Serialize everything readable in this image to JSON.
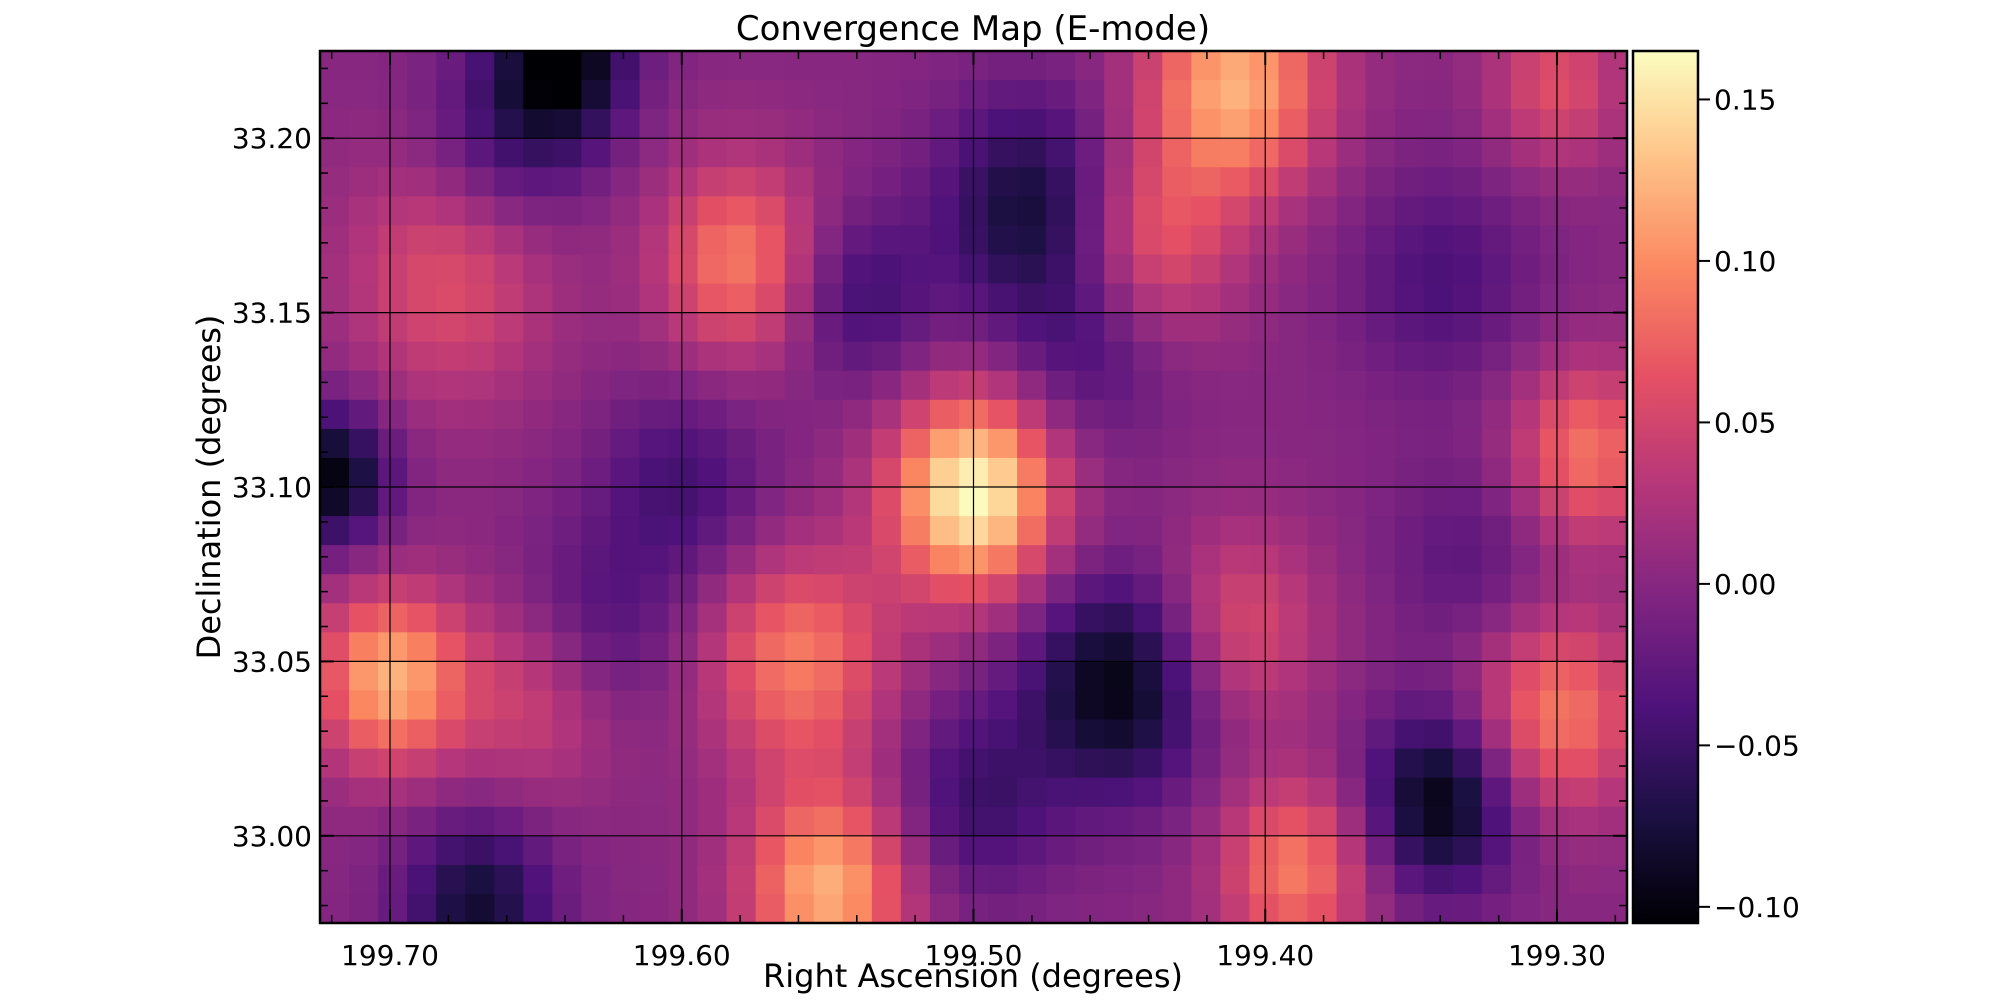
{
  "chart_data": {
    "type": "heatmap",
    "title": "Convergence Map (E-mode)",
    "xlabel": "Right Ascension (degrees)",
    "ylabel": "Declination (degrees)",
    "x_axis_inverted": true,
    "xlim": [
      199.724,
      199.276
    ],
    "ylim": [
      32.975,
      33.225
    ],
    "x_ticks": [
      199.7,
      199.6,
      199.5,
      199.4,
      199.3
    ],
    "x_tick_labels": [
      "199.70",
      "199.60",
      "199.50",
      "199.40",
      "199.30"
    ],
    "y_ticks": [
      33.0,
      33.05,
      33.1,
      33.15,
      33.2
    ],
    "y_tick_labels": [
      "33.00",
      "33.05",
      "33.10",
      "33.15",
      "33.20"
    ],
    "grid": true,
    "colormap": "magma",
    "colormap_stops": [
      "#000004",
      "#1c1044",
      "#4f127b",
      "#812581",
      "#b5367a",
      "#e55064",
      "#fb8761",
      "#fec287",
      "#fcfdbf"
    ],
    "color_range": [
      -0.105,
      0.165
    ],
    "colorbar_ticks": [
      0.15,
      0.1,
      0.05,
      0.0,
      -0.05,
      -0.1
    ],
    "colorbar_tick_labels": [
      "0.15",
      "0.10",
      "0.05",
      "0.00",
      "−0.05",
      "−0.10"
    ],
    "grid_shape": [
      30,
      45
    ],
    "features": [
      {
        "ra": 199.5,
        "dec": 33.098,
        "kappa": 0.165,
        "spread": 0.02
      },
      {
        "ra": 199.7,
        "dec": 33.045,
        "kappa": 0.12,
        "spread": 0.018
      },
      {
        "ra": 199.29,
        "dec": 33.11,
        "kappa": 0.085,
        "spread": 0.018
      },
      {
        "ra": 199.3,
        "dec": 33.035,
        "kappa": 0.09,
        "spread": 0.02
      },
      {
        "ra": 199.41,
        "dec": 33.215,
        "kappa": 0.12,
        "spread": 0.022
      },
      {
        "ra": 199.3,
        "dec": 33.215,
        "kappa": 0.06,
        "spread": 0.016
      },
      {
        "ra": 199.58,
        "dec": 33.165,
        "kappa": 0.09,
        "spread": 0.02
      },
      {
        "ra": 199.56,
        "dec": 33.05,
        "kappa": 0.09,
        "spread": 0.022
      },
      {
        "ra": 199.55,
        "dec": 32.985,
        "kappa": 0.12,
        "spread": 0.02
      },
      {
        "ra": 199.39,
        "dec": 32.99,
        "kappa": 0.09,
        "spread": 0.018
      },
      {
        "ra": 199.68,
        "dec": 33.16,
        "kappa": 0.06,
        "spread": 0.025
      },
      {
        "ra": 199.44,
        "dec": 33.17,
        "kappa": 0.07,
        "spread": 0.02
      },
      {
        "ra": 199.65,
        "dec": 33.04,
        "kappa": 0.05,
        "spread": 0.02
      },
      {
        "ra": 199.41,
        "dec": 33.06,
        "kappa": 0.06,
        "spread": 0.02
      },
      {
        "ra": 199.45,
        "dec": 33.043,
        "kappa": -0.1,
        "spread": 0.022
      },
      {
        "ra": 199.34,
        "dec": 33.01,
        "kappa": -0.1,
        "spread": 0.018
      },
      {
        "ra": 199.72,
        "dec": 33.103,
        "kappa": -0.1,
        "spread": 0.014
      },
      {
        "ra": 199.64,
        "dec": 33.222,
        "kappa": -0.1,
        "spread": 0.016
      },
      {
        "ra": 199.66,
        "dec": 33.2,
        "kappa": -0.05,
        "spread": 0.02
      },
      {
        "ra": 199.48,
        "dec": 33.18,
        "kappa": -0.08,
        "spread": 0.022
      },
      {
        "ra": 199.67,
        "dec": 32.98,
        "kappa": -0.08,
        "spread": 0.018
      },
      {
        "ra": 199.6,
        "dec": 33.1,
        "kappa": -0.045,
        "spread": 0.02
      },
      {
        "ra": 199.54,
        "dec": 33.155,
        "kappa": -0.05,
        "spread": 0.018
      },
      {
        "ra": 199.46,
        "dec": 33.14,
        "kappa": -0.04,
        "spread": 0.02
      },
      {
        "ra": 199.34,
        "dec": 33.16,
        "kappa": -0.04,
        "spread": 0.022
      },
      {
        "ra": 199.5,
        "dec": 33.01,
        "kappa": -0.05,
        "spread": 0.02
      },
      {
        "ra": 199.63,
        "dec": 33.06,
        "kappa": -0.04,
        "spread": 0.02
      },
      {
        "ra": 199.33,
        "dec": 33.08,
        "kappa": -0.03,
        "spread": 0.02
      }
    ],
    "background_kappa": 0.0
  }
}
